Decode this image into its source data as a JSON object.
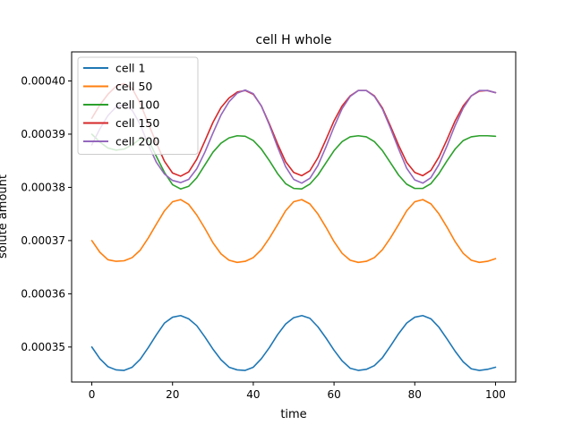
{
  "chart_data": {
    "type": "line",
    "title": "cell H whole",
    "xlabel": "time",
    "ylabel": "solute amount",
    "xlim": [
      -5,
      105
    ],
    "ylim": [
      0.00034342,
      0.00040546
    ],
    "xticks": [
      0,
      20,
      40,
      60,
      80,
      100
    ],
    "yticks": [
      0.00035,
      0.00036,
      0.00037,
      0.00038,
      0.00039,
      0.0004
    ],
    "ytick_labels": [
      "0.00035",
      "0.00036",
      "0.00037",
      "0.00038",
      "0.00039",
      "0.00040"
    ],
    "legend_position": "upper-left",
    "grid": false,
    "series": [
      {
        "name": "cell 1",
        "color": "#1f77b4",
        "x": [
          0,
          2,
          4,
          6,
          8,
          10,
          12,
          14,
          16,
          18,
          20,
          22,
          24,
          26,
          28,
          30,
          32,
          34,
          36,
          38,
          40,
          42,
          44,
          46,
          48,
          50,
          52,
          54,
          56,
          58,
          60,
          62,
          64,
          66,
          68,
          70,
          72,
          74,
          76,
          78,
          80,
          82,
          84,
          86,
          88,
          90,
          92,
          94,
          96,
          98,
          100
        ],
        "y": [
          0.00035,
          0.0003478,
          0.0003463,
          0.0003457,
          0.0003456,
          0.0003462,
          0.0003477,
          0.0003499,
          0.0003523,
          0.0003545,
          0.0003556,
          0.0003559,
          0.0003553,
          0.000354,
          0.0003519,
          0.0003496,
          0.0003476,
          0.0003462,
          0.0003457,
          0.0003456,
          0.0003462,
          0.0003478,
          0.0003499,
          0.0003523,
          0.0003543,
          0.0003555,
          0.0003559,
          0.0003554,
          0.0003538,
          0.0003517,
          0.0003494,
          0.0003474,
          0.000346,
          0.0003456,
          0.0003458,
          0.0003465,
          0.000348,
          0.0003502,
          0.0003525,
          0.0003545,
          0.0003556,
          0.0003559,
          0.0003553,
          0.0003537,
          0.0003515,
          0.0003492,
          0.0003472,
          0.0003459,
          0.0003456,
          0.0003458,
          0.0003462
        ]
      },
      {
        "name": "cell 50",
        "color": "#ff7f0e",
        "x": [
          0,
          2,
          4,
          6,
          8,
          10,
          12,
          14,
          16,
          18,
          20,
          22,
          24,
          26,
          28,
          30,
          32,
          34,
          36,
          38,
          40,
          42,
          44,
          46,
          48,
          50,
          52,
          54,
          56,
          58,
          60,
          62,
          64,
          66,
          68,
          70,
          72,
          74,
          76,
          78,
          80,
          82,
          84,
          86,
          88,
          90,
          92,
          94,
          96,
          98,
          100
        ],
        "y": [
          0.00037,
          0.0003678,
          0.0003664,
          0.0003661,
          0.0003662,
          0.0003668,
          0.0003682,
          0.0003705,
          0.0003731,
          0.0003756,
          0.0003773,
          0.0003777,
          0.0003768,
          0.0003748,
          0.0003723,
          0.0003696,
          0.0003675,
          0.0003663,
          0.0003659,
          0.0003661,
          0.0003668,
          0.0003683,
          0.0003705,
          0.000373,
          0.0003756,
          0.0003773,
          0.0003777,
          0.0003769,
          0.000375,
          0.0003725,
          0.0003698,
          0.0003676,
          0.0003663,
          0.0003659,
          0.0003661,
          0.0003668,
          0.0003683,
          0.0003705,
          0.000373,
          0.0003756,
          0.0003773,
          0.0003777,
          0.0003769,
          0.000375,
          0.0003725,
          0.0003698,
          0.0003676,
          0.0003663,
          0.0003659,
          0.0003661,
          0.0003666
        ]
      },
      {
        "name": "cell 100",
        "color": "#2ca02c",
        "x": [
          0,
          2,
          4,
          6,
          8,
          10,
          12,
          14,
          16,
          18,
          20,
          22,
          24,
          26,
          28,
          30,
          32,
          34,
          36,
          38,
          40,
          42,
          44,
          46,
          48,
          50,
          52,
          54,
          56,
          58,
          60,
          62,
          64,
          66,
          68,
          70,
          72,
          74,
          76,
          78,
          80,
          82,
          84,
          86,
          88,
          90,
          92,
          94,
          96,
          98,
          100
        ],
        "y": [
          0.00039,
          0.0003885,
          0.0003874,
          0.000387,
          0.0003872,
          0.000388,
          0.0003891,
          0.00038895,
          0.0003858,
          0.0003828,
          0.0003805,
          0.0003797,
          0.0003802,
          0.0003818,
          0.0003842,
          0.0003866,
          0.0003883,
          0.0003893,
          0.0003897,
          0.0003896,
          0.0003888,
          0.0003872,
          0.000385,
          0.0003826,
          0.0003807,
          0.0003798,
          0.0003797,
          0.0003806,
          0.0003823,
          0.0003846,
          0.0003869,
          0.0003886,
          0.0003895,
          0.0003897,
          0.0003895,
          0.0003886,
          0.0003869,
          0.0003846,
          0.0003823,
          0.0003806,
          0.0003798,
          0.0003798,
          0.0003807,
          0.0003826,
          0.000385,
          0.0003872,
          0.0003888,
          0.0003895,
          0.0003897,
          0.0003897,
          0.0003896
        ]
      },
      {
        "name": "cell 150",
        "color": "#d62728",
        "x": [
          0,
          2,
          4,
          6,
          8,
          10,
          12,
          14,
          16,
          18,
          20,
          22,
          24,
          26,
          28,
          30,
          32,
          34,
          36,
          38,
          40,
          42,
          44,
          46,
          48,
          50,
          52,
          54,
          56,
          58,
          60,
          62,
          64,
          66,
          68,
          70,
          72,
          74,
          76,
          78,
          80,
          82,
          84,
          86,
          88,
          90,
          92,
          94,
          96,
          98,
          100
        ],
        "y": [
          0.000393,
          0.0003955,
          0.0003975,
          0.000399,
          0.0003995,
          0.0003986,
          0.0003958,
          0.000392,
          0.0003883,
          0.0003849,
          0.0003827,
          0.0003821,
          0.0003829,
          0.0003853,
          0.0003887,
          0.0003922,
          0.000395,
          0.0003968,
          0.0003979,
          0.0003982,
          0.0003975,
          0.0003953,
          0.0003919,
          0.0003882,
          0.0003848,
          0.0003828,
          0.0003822,
          0.0003831,
          0.0003856,
          0.000389,
          0.0003925,
          0.0003953,
          0.0003972,
          0.0003982,
          0.0003982,
          0.0003972,
          0.0003949,
          0.0003915,
          0.0003879,
          0.0003847,
          0.0003828,
          0.0003822,
          0.0003832,
          0.0003857,
          0.000389,
          0.0003925,
          0.0003953,
          0.0003972,
          0.0003981,
          0.0003982,
          0.0003978
        ]
      },
      {
        "name": "cell 200",
        "color": "#9467bd",
        "x": [
          0,
          2,
          4,
          6,
          8,
          10,
          12,
          14,
          16,
          18,
          20,
          22,
          24,
          26,
          28,
          30,
          32,
          34,
          36,
          38,
          40,
          42,
          44,
          46,
          48,
          50,
          52,
          54,
          56,
          58,
          60,
          62,
          64,
          66,
          68,
          70,
          72,
          74,
          76,
          78,
          80,
          82,
          84,
          86,
          88,
          90,
          92,
          94,
          96,
          98,
          100
        ],
        "y": [
          0.000388,
          0.000391,
          0.0003935,
          0.0003951,
          0.0003955,
          0.0003945,
          0.0003918,
          0.000388,
          0.0003847,
          0.0003825,
          0.0003813,
          0.0003809,
          0.0003815,
          0.0003835,
          0.0003866,
          0.0003902,
          0.0003936,
          0.0003961,
          0.0003977,
          0.0003983,
          0.0003976,
          0.0003953,
          0.0003917,
          0.0003876,
          0.0003839,
          0.0003815,
          0.0003808,
          0.0003817,
          0.0003841,
          0.0003876,
          0.0003914,
          0.0003948,
          0.0003971,
          0.0003982,
          0.0003982,
          0.0003971,
          0.0003947,
          0.0003911,
          0.0003872,
          0.0003836,
          0.0003814,
          0.0003808,
          0.0003818,
          0.0003843,
          0.0003878,
          0.0003916,
          0.0003949,
          0.0003972,
          0.0003982,
          0.0003982,
          0.0003978
        ]
      }
    ]
  }
}
